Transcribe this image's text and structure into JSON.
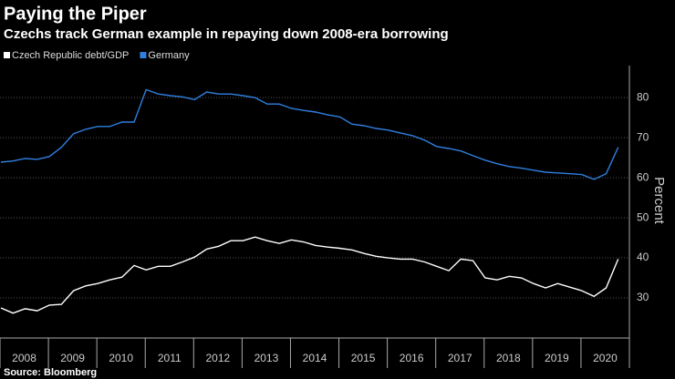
{
  "chart_data": {
    "type": "line",
    "title": "Paying the Piper",
    "subtitle": "Czechs track German example in repaying down 2008-era borrowing",
    "y_label": "Percent",
    "source": "Source: Bloomberg",
    "categories": [
      "2008",
      null,
      null,
      null,
      "2009",
      null,
      null,
      null,
      "2010",
      null,
      null,
      null,
      "2011",
      null,
      null,
      null,
      "2012",
      null,
      null,
      null,
      "2013",
      null,
      null,
      null,
      "2014",
      null,
      null,
      null,
      "2015",
      null,
      null,
      null,
      "2016",
      null,
      null,
      null,
      "2017",
      null,
      null,
      null,
      "2018",
      null,
      null,
      null,
      "2019",
      null,
      null,
      null,
      "2020",
      null,
      null,
      null
    ],
    "series": [
      {
        "name": "Czech Republic debt/GDP",
        "color": "#ffffff",
        "values": [
          27.5,
          26.2,
          27.3,
          26.8,
          28.2,
          28.4,
          31.8,
          33,
          33.6,
          34.5,
          35.2,
          38.1,
          37,
          37.9,
          37.9,
          39,
          40.2,
          42.2,
          42.9,
          44.3,
          44.3,
          45.2,
          44.3,
          43.6,
          44.5,
          44,
          43.1,
          42.7,
          42.4,
          42,
          41.1,
          40.4,
          40,
          39.7,
          39.7,
          39,
          37.9,
          36.8,
          39.7,
          39.3,
          35,
          34.5,
          35.4,
          35,
          33.6,
          32.5,
          33.6,
          32.7,
          31.8,
          30.4,
          32.5,
          39.7
        ]
      },
      {
        "name": "Germany",
        "color": "#2f7fe0",
        "values": [
          63.9,
          64.2,
          64.8,
          64.6,
          65.3,
          67.6,
          71,
          72.1,
          72.8,
          72.8,
          73.9,
          73.9,
          82,
          80.9,
          80.5,
          80.2,
          79.5,
          81.4,
          80.9,
          80.9,
          80.5,
          80,
          78.4,
          78.4,
          77.3,
          76.8,
          76.4,
          75.7,
          75.2,
          73.4,
          73,
          72.3,
          71.9,
          71.2,
          70.5,
          69.4,
          67.8,
          67.3,
          66.7,
          65.5,
          64.4,
          63.5,
          62.8,
          62.4,
          61.9,
          61.4,
          61.2,
          61,
          60.8,
          59.6,
          61,
          67.6
        ]
      }
    ],
    "ylim": [
      20,
      88
    ],
    "yticks": [
      30,
      40,
      50,
      60,
      70,
      80
    ],
    "grid": true
  }
}
